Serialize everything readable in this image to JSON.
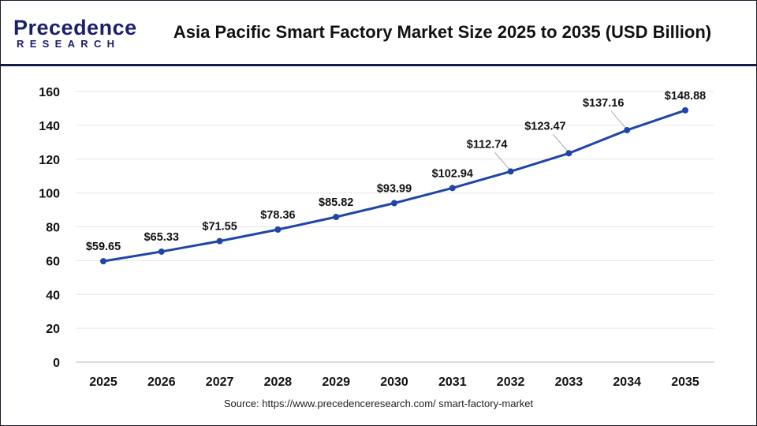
{
  "logo": {
    "line1": "Precedence",
    "line2": "RESEARCH"
  },
  "title": "Asia Pacific Smart Factory Market Size 2025 to 2035 (USD Billion)",
  "source": "Source: https://www.precedenceresearch.com/ smart-factory-market",
  "colors": {
    "line": "#1f45a8",
    "header_rule": "#141a4a",
    "logo": "#1b1f6b"
  },
  "chart_data": {
    "type": "line",
    "title": "Asia Pacific Smart Factory Market Size 2025 to 2035 (USD Billion)",
    "xlabel": "",
    "ylabel": "",
    "categories": [
      "2025",
      "2026",
      "2027",
      "2028",
      "2029",
      "2030",
      "2031",
      "2032",
      "2033",
      "2034",
      "2035"
    ],
    "values": [
      59.65,
      65.33,
      71.55,
      78.36,
      85.82,
      93.99,
      102.94,
      112.74,
      123.47,
      137.16,
      148.88
    ],
    "data_labels": [
      "$59.65",
      "$65.33",
      "$71.55",
      "$78.36",
      "$85.82",
      "$93.99",
      "$102.94",
      "$112.74",
      "$123.47",
      "$137.16",
      "$148.88"
    ],
    "ylim": [
      0,
      160
    ],
    "yticks": [
      "0",
      "20",
      "40",
      "60",
      "80",
      "100",
      "120",
      "140",
      "160"
    ],
    "grid": true,
    "legend": "none"
  }
}
